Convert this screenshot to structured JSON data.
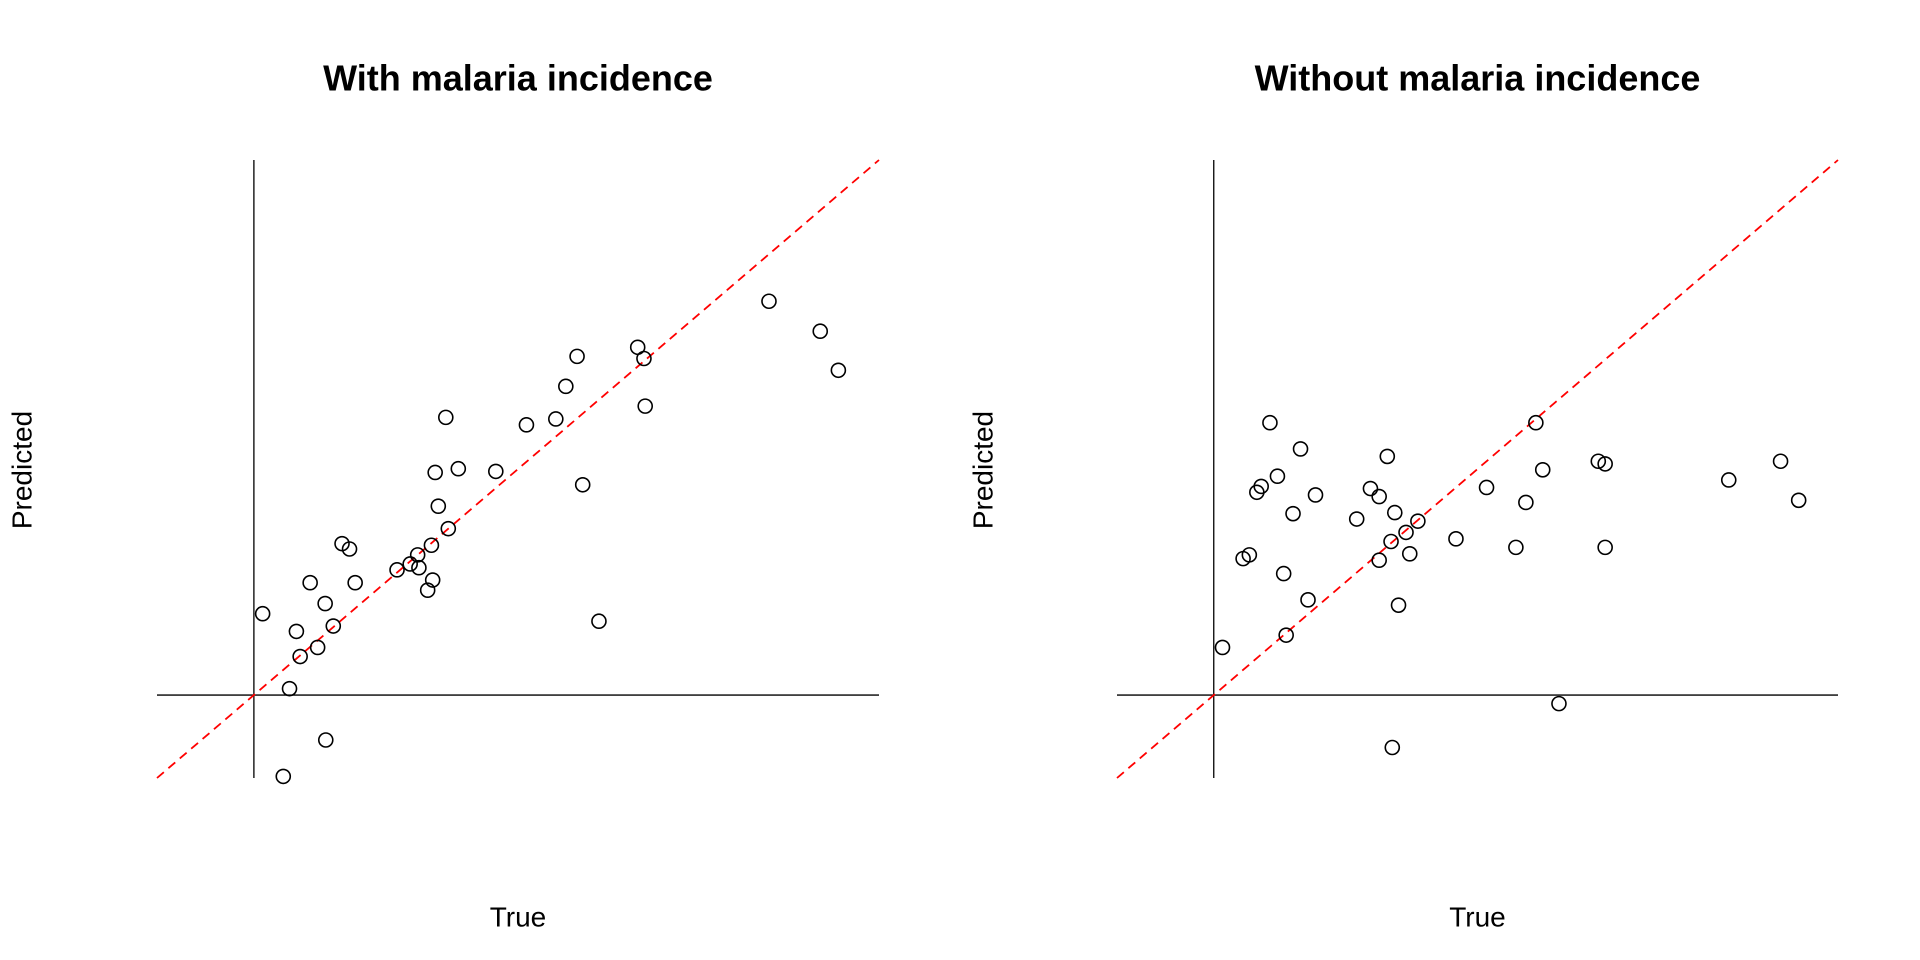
{
  "chart_data": [
    {
      "type": "scatter",
      "title": "With malaria incidence",
      "xlabel": "True",
      "ylabel": "Predicted",
      "xlim": [
        -0.155,
        1
      ],
      "ylim": [
        -0.155,
        1
      ],
      "marker": "circle-open",
      "color": "#000000",
      "hline": 0,
      "vline": 0,
      "abline": {
        "intercept": 0,
        "slope": 1,
        "color": "#ff0000",
        "style": "dashed"
      },
      "series": [
        {
          "x": [
            0.014,
            0.068,
            0.074,
            0.057,
            0.102,
            0.114,
            0.127,
            0.09,
            0.141,
            0.153,
            0.162,
            0.115,
            0.047,
            0.229,
            0.25,
            0.262,
            0.264,
            0.284,
            0.286,
            0.278,
            0.295,
            0.311,
            0.29,
            0.307,
            0.327,
            0.387,
            0.436,
            0.483,
            0.499,
            0.517,
            0.526,
            0.552,
            0.614,
            0.624,
            0.626,
            0.824,
            0.906,
            0.935
          ],
          "y": [
            0.152,
            0.119,
            0.072,
            0.012,
            0.089,
            0.171,
            0.129,
            0.21,
            0.283,
            0.273,
            0.21,
            -0.084,
            -0.152,
            0.234,
            0.245,
            0.262,
            0.238,
            0.28,
            0.215,
            0.196,
            0.353,
            0.311,
            0.416,
            0.519,
            0.423,
            0.418,
            0.505,
            0.516,
            0.577,
            0.633,
            0.393,
            0.138,
            0.65,
            0.629,
            0.54,
            0.736,
            0.68,
            0.607
          ]
        }
      ]
    },
    {
      "type": "scatter",
      "title": "Without malaria incidence",
      "xlabel": "True",
      "ylabel": "Predicted",
      "xlim": [
        -0.155,
        1
      ],
      "ylim": [
        -0.155,
        1
      ],
      "marker": "circle-open",
      "color": "#000000",
      "hline": 0,
      "vline": 0,
      "abline": {
        "intercept": 0,
        "slope": 1,
        "color": "#ff0000",
        "style": "dashed"
      },
      "series": [
        {
          "x": [
            0.014,
            0.047,
            0.057,
            0.069,
            0.076,
            0.09,
            0.102,
            0.112,
            0.116,
            0.127,
            0.139,
            0.151,
            0.163,
            0.229,
            0.251,
            0.265,
            0.265,
            0.278,
            0.284,
            0.29,
            0.296,
            0.308,
            0.314,
            0.327,
            0.286,
            0.388,
            0.437,
            0.484,
            0.5,
            0.516,
            0.527,
            0.553,
            0.616,
            0.627,
            0.627,
            0.825,
            0.908,
            0.937
          ],
          "y": [
            0.089,
            0.255,
            0.262,
            0.379,
            0.39,
            0.509,
            0.409,
            0.227,
            0.112,
            0.339,
            0.46,
            0.178,
            0.374,
            0.329,
            0.386,
            0.371,
            0.252,
            0.446,
            0.287,
            0.341,
            0.168,
            0.304,
            0.264,
            0.325,
            -0.098,
            0.292,
            0.388,
            0.276,
            0.36,
            0.509,
            0.421,
            -0.016,
            0.437,
            0.432,
            0.276,
            0.402,
            0.437,
            0.364
          ]
        }
      ]
    }
  ]
}
